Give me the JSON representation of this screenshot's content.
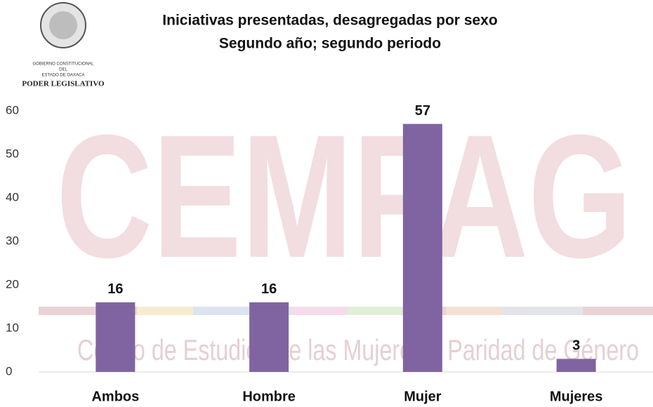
{
  "logo": {
    "line1": "GOBIERNO CONSTITUCIONAL",
    "line2": "DEL",
    "line3": "ESTADO DE OAXACA",
    "line4": "PODER LEGISLATIVO"
  },
  "watermark": {
    "letters": "CEMPAG",
    "text": "Centro de Estudios de las Mujeres y Paridad de Género"
  },
  "chart_data": {
    "type": "bar",
    "title": "Iniciativas presentadas, desagregadas por sexo",
    "subtitle": "Segundo año; segundo periodo",
    "categories": [
      "Ambos",
      "Hombre",
      "Mujer",
      "Mujeres"
    ],
    "values": [
      16,
      16,
      57,
      3
    ],
    "color": "#8064a2",
    "ylim": [
      0,
      60
    ],
    "yticks": [
      0,
      10,
      20,
      30,
      40,
      50,
      60
    ],
    "grid": false
  }
}
